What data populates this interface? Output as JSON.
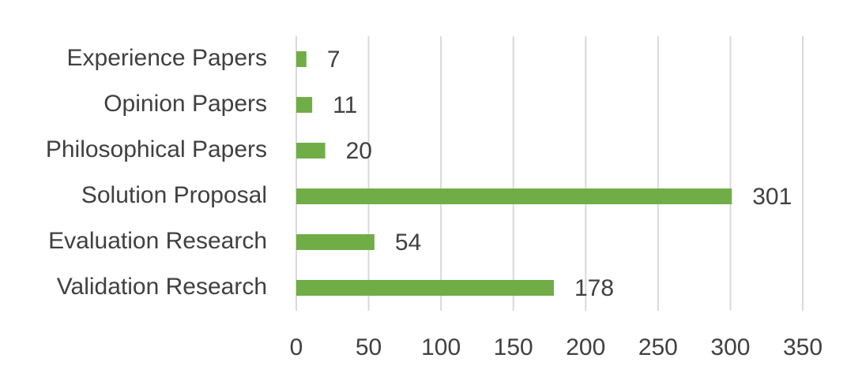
{
  "chart_data": {
    "type": "bar",
    "orientation": "horizontal",
    "categories": [
      "Experience Papers",
      "Opinion Papers",
      "Philosophical Papers",
      "Solution Proposal",
      "Evaluation Research",
      "Validation Research"
    ],
    "values": [
      7,
      11,
      20,
      301,
      54,
      178
    ],
    "color": "#70ad47",
    "xlim": [
      0,
      350
    ],
    "xticks": [
      0,
      50,
      100,
      150,
      200,
      250,
      300,
      350
    ],
    "grid": true
  }
}
